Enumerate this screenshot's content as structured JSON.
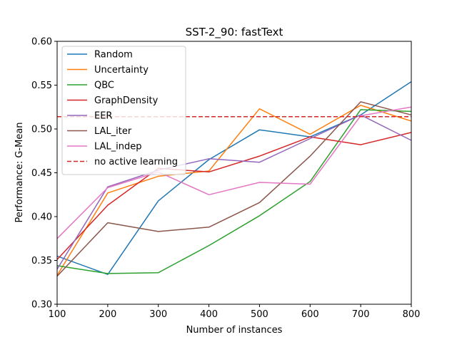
{
  "chart_data": {
    "type": "line",
    "title": "SST-2_90: fastText",
    "xlabel": "Number of instances",
    "ylabel": "Performance: G-Mean",
    "x": [
      100,
      200,
      300,
      400,
      500,
      600,
      700,
      800
    ],
    "xlim": [
      100,
      800
    ],
    "ylim": [
      0.3,
      0.6
    ],
    "xticks": [
      "100",
      "200",
      "300",
      "400",
      "500",
      "600",
      "700",
      "800"
    ],
    "yticks": [
      "0.30",
      "0.35",
      "0.40",
      "0.45",
      "0.50",
      "0.55",
      "0.60"
    ],
    "grid": false,
    "legend_position": "upper-left",
    "series": [
      {
        "name": "Random",
        "color": "#1f77b4",
        "values": [
          0.355,
          0.334,
          0.418,
          0.465,
          0.499,
          0.491,
          0.516,
          0.554
        ]
      },
      {
        "name": "Uncertainty",
        "color": "#ff7f0e",
        "values": [
          0.333,
          0.427,
          0.446,
          0.452,
          0.523,
          0.494,
          0.527,
          0.509
        ]
      },
      {
        "name": "QBC",
        "color": "#2ca02c",
        "values": [
          0.344,
          0.335,
          0.336,
          0.367,
          0.401,
          0.44,
          0.522,
          0.52
        ]
      },
      {
        "name": "GraphDensity",
        "color": "#d62728",
        "values": [
          0.351,
          0.413,
          0.455,
          0.451,
          0.469,
          0.491,
          0.482,
          0.496
        ]
      },
      {
        "name": "EER",
        "color": "#9467bd",
        "values": [
          0.34,
          0.434,
          0.453,
          0.466,
          0.462,
          0.489,
          0.516,
          0.487
        ]
      },
      {
        "name": "LAL_iter",
        "color": "#8c564b",
        "values": [
          0.332,
          0.393,
          0.383,
          0.388,
          0.416,
          0.469,
          0.531,
          0.516
        ]
      },
      {
        "name": "LAL_indep",
        "color": "#e377c2",
        "values": [
          0.375,
          0.433,
          0.451,
          0.425,
          0.439,
          0.437,
          0.515,
          0.525
        ]
      },
      {
        "name": "no active learning",
        "color": "#d62728",
        "dashed": true,
        "values": [
          0.514,
          0.514,
          0.514,
          0.514,
          0.514,
          0.514,
          0.514,
          0.514
        ]
      }
    ]
  }
}
